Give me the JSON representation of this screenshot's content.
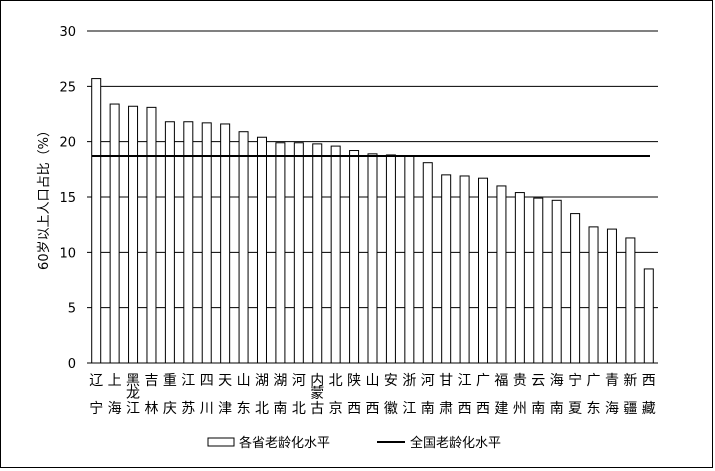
{
  "chart_data": {
    "type": "bar",
    "ylabel": "60岁以上人口占比（%）",
    "ylim": [
      0,
      30
    ],
    "yticks": [
      0,
      5,
      10,
      15,
      20,
      25,
      30
    ],
    "grid": true,
    "legend_position": "bottom",
    "categories": [
      [
        "辽",
        "宁"
      ],
      [
        "上",
        "海"
      ],
      [
        "黑龙",
        "江"
      ],
      [
        "吉",
        "林"
      ],
      [
        "重",
        "庆"
      ],
      [
        "江",
        "苏"
      ],
      [
        "四",
        "川"
      ],
      [
        "天",
        "津"
      ],
      [
        "山",
        "东"
      ],
      [
        "湖",
        "北"
      ],
      [
        "湖",
        "南"
      ],
      [
        "河",
        "北"
      ],
      [
        "内蒙",
        "古"
      ],
      [
        "北",
        "京"
      ],
      [
        "陕",
        "西"
      ],
      [
        "山",
        "西"
      ],
      [
        "安",
        "徽"
      ],
      [
        "浙",
        "江"
      ],
      [
        "河",
        "南"
      ],
      [
        "甘",
        "肃"
      ],
      [
        "江",
        "西"
      ],
      [
        "广",
        "西"
      ],
      [
        "福",
        "建"
      ],
      [
        "贵",
        "州"
      ],
      [
        "云",
        "南"
      ],
      [
        "海",
        "南"
      ],
      [
        "宁",
        "夏"
      ],
      [
        "广",
        "东"
      ],
      [
        "青",
        "海"
      ],
      [
        "新",
        "疆"
      ],
      [
        "西",
        "藏"
      ]
    ],
    "series": [
      {
        "name": "各省老龄化水平",
        "kind": "bar",
        "color": "#ffffff",
        "values": [
          25.7,
          23.4,
          23.2,
          23.1,
          21.8,
          21.8,
          21.7,
          21.6,
          20.9,
          20.4,
          19.9,
          19.9,
          19.8,
          19.6,
          19.2,
          18.9,
          18.8,
          18.7,
          18.1,
          17.0,
          16.9,
          16.7,
          16.0,
          15.4,
          14.9,
          14.7,
          13.5,
          12.3,
          12.1,
          11.3,
          8.5
        ]
      },
      {
        "name": "全国老龄化水平",
        "kind": "line",
        "color": "#000000",
        "value": 18.7
      }
    ]
  }
}
